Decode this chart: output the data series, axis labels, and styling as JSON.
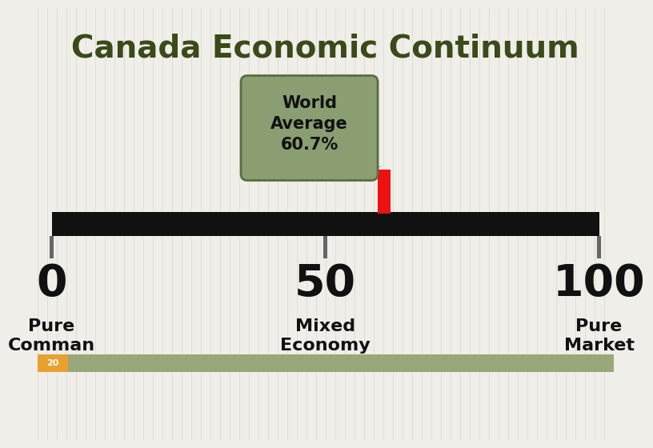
{
  "title": "Canada Economic Continuum",
  "title_color": "#3A4A1A",
  "title_fontsize": 28,
  "background_color": "#F0EEE8",
  "slide_number": "20",
  "slide_number_bg": "#E8A030",
  "header_bar_color": "#98A87A",
  "continuum_bar_color": "#111111",
  "tick_color": "#666666",
  "marker_value": 60.7,
  "marker_color": "#EE1111",
  "bubble_text": "World\nAverage\n60.7%",
  "bubble_color": "#8A9E72",
  "bubble_border_color": "#5A6E42",
  "bubble_fontsize": 15,
  "labels": [
    "0",
    "50",
    "100"
  ],
  "sublabels_0": "Pure\nComman",
  "sublabels_1": "Mixed\nEconomy",
  "sublabels_2": "Pure\nMarket",
  "label_fontsize": 40,
  "sublabel_fontsize": 16,
  "label_color": "#111111"
}
